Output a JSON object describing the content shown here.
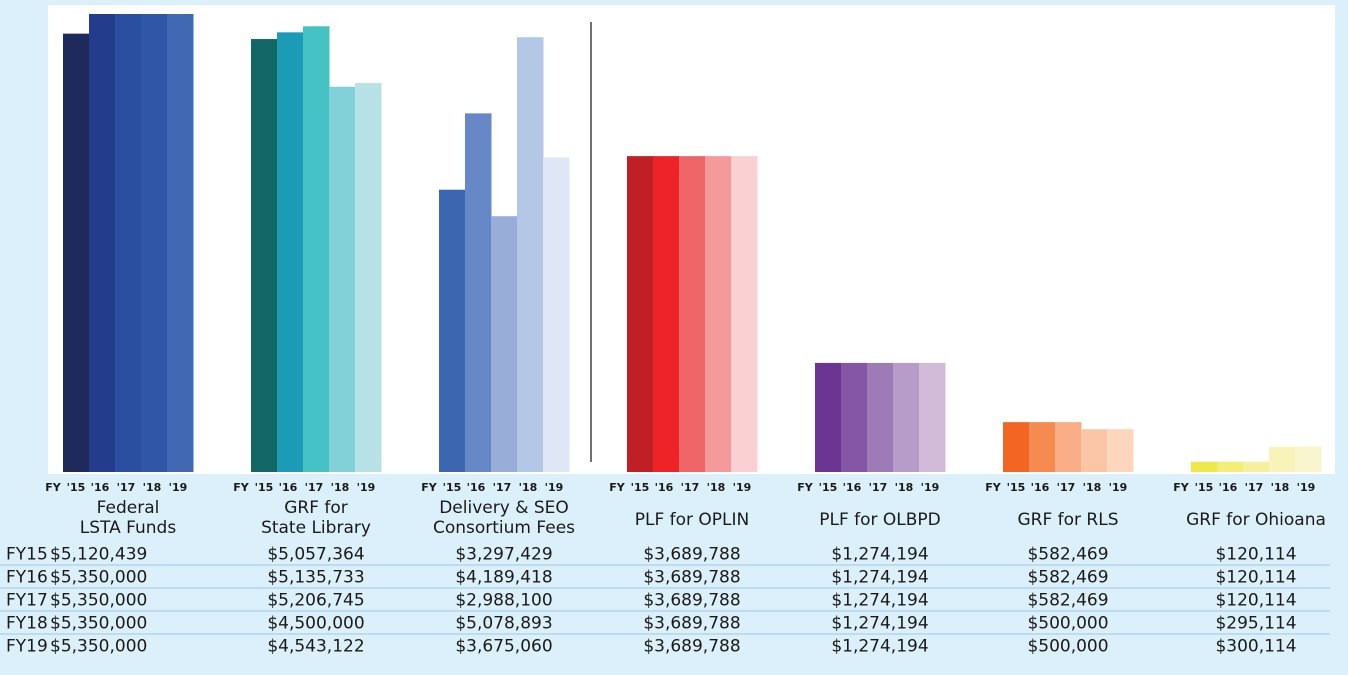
{
  "chart_data": {
    "type": "bar",
    "categories": [
      [
        "Federal",
        "LSTA Funds"
      ],
      [
        "GRF for",
        "State Library"
      ],
      [
        "Delivery & SEO",
        "Consortium Fees"
      ],
      [
        "PLF for OPLIN"
      ],
      [
        "PLF for OLBPD"
      ],
      [
        "GRF for RLS"
      ],
      [
        "GRF for Ohioana"
      ]
    ],
    "group_tick_labels": [
      "FY",
      "'15",
      "'16",
      "'17",
      "'18",
      "'19"
    ],
    "ylim": [
      0,
      5350000
    ],
    "series": [
      {
        "name": "FY15",
        "colors": [
          "#1f2a5c",
          "#136766",
          "#3c66b0",
          "#bf1f25",
          "#6c3592",
          "#f26522",
          "#eee84a"
        ],
        "values": [
          5120439,
          5057364,
          3297429,
          3689788,
          1274194,
          582469,
          120114
        ],
        "value_labels": [
          "$5,120,439",
          "$5,057,364",
          "$3,297,429",
          "$3,689,788",
          "$1,274,194",
          "$582,469",
          "$120,114"
        ]
      },
      {
        "name": "FY16",
        "colors": [
          "#233c8c",
          "#1b9bb5",
          "#6688c6",
          "#ee2328",
          "#8556a3",
          "#f68b50",
          "#f2ee77"
        ],
        "values": [
          5350000,
          5135733,
          4189418,
          3689788,
          1274194,
          582469,
          120114
        ],
        "value_labels": [
          "$5,350,000",
          "$5,135,733",
          "$4,189,418",
          "$3,689,788",
          "$1,274,194",
          "$582,469",
          "$120,114"
        ]
      },
      {
        "name": "FY17",
        "colors": [
          "#2a4ea0",
          "#45c2c3",
          "#98aed8",
          "#f06567",
          "#9d7bb6",
          "#f9ae88",
          "#f4f09c"
        ],
        "values": [
          5350000,
          5206745,
          2988100,
          3689788,
          1274194,
          582469,
          120114
        ],
        "value_labels": [
          "$5,350,000",
          "$5,206,745",
          "$2,988,100",
          "$3,689,788",
          "$1,274,194",
          "$582,469",
          "$120,114"
        ]
      },
      {
        "name": "FY18",
        "colors": [
          "#3056a8",
          "#82d0d8",
          "#b5c7e6",
          "#f59a9b",
          "#b79bc8",
          "#fbc6a6",
          "#f7f3b9"
        ],
        "values": [
          5350000,
          4500000,
          5078893,
          3689788,
          1274194,
          500000,
          295114
        ],
        "value_labels": [
          "$5,350,000",
          "$4,500,000",
          "$5,078,893",
          "$3,689,788",
          "$1,274,194",
          "$500,000",
          "$295,114"
        ]
      },
      {
        "name": "FY19",
        "colors": [
          "#4169b3",
          "#b6e2e7",
          "#dfe6f5",
          "#fbd0d2",
          "#d1bbd9",
          "#fcd6bd",
          "#f9f6cf"
        ],
        "values": [
          5350000,
          4543122,
          3675060,
          3689788,
          1274194,
          500000,
          300114
        ],
        "value_labels": [
          "$5,350,000",
          "$4,543,122",
          "$3,675,060",
          "$3,689,788",
          "$1,274,194",
          "$500,000",
          "$300,114"
        ]
      }
    ]
  }
}
